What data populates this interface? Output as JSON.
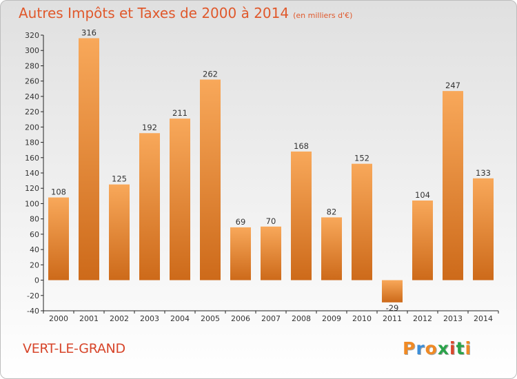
{
  "title": "Autres Impôts et Taxes de 2000 à 2014",
  "unit": "(en milliers d'€)",
  "city": "VERT-LE-GRAND",
  "brand": {
    "letters": [
      "P",
      "r",
      "o",
      "x",
      "i",
      "t",
      "i"
    ],
    "colors": [
      "#f08a24",
      "#3c8ed8",
      "#f08a24",
      "#2aa34a",
      "#d9472b",
      "#2aa34a",
      "#f08a24"
    ]
  },
  "colors": {
    "bar_light": "#f8a85a",
    "bar_dark": "#cd6a1a",
    "title": "#e0582b",
    "city": "#d7452a"
  },
  "chart_data": {
    "type": "bar",
    "categories": [
      "2000",
      "2001",
      "2002",
      "2003",
      "2004",
      "2005",
      "2006",
      "2007",
      "2008",
      "2009",
      "2010",
      "2011",
      "2012",
      "2013",
      "2014"
    ],
    "values": [
      108,
      316,
      125,
      192,
      211,
      262,
      69,
      70,
      168,
      82,
      152,
      -29,
      104,
      247,
      133
    ],
    "ylim": [
      -40,
      320
    ],
    "yticks": [
      -40,
      -20,
      0,
      20,
      40,
      60,
      80,
      100,
      120,
      140,
      160,
      180,
      200,
      220,
      240,
      260,
      280,
      300,
      320
    ],
    "grid": false,
    "legend": "none"
  }
}
